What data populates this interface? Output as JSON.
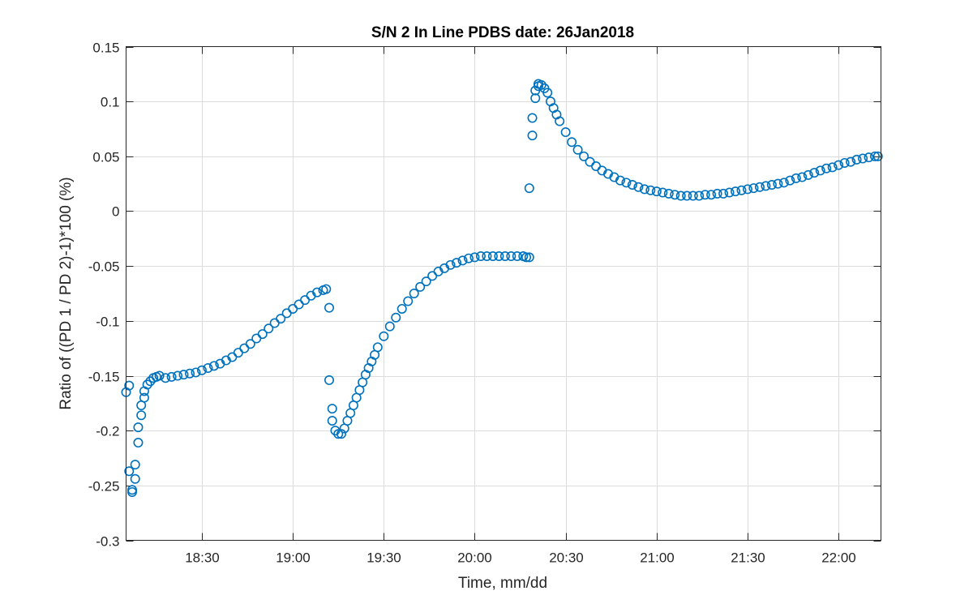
{
  "chart_data": {
    "type": "scatter",
    "title": "S/N 2 In Line PDBS date: 26Jan2018",
    "xlabel": "Time, mm/dd",
    "ylabel": "Ratio of ((PD 1 / PD 2)-1)*100 (%)",
    "xlim": [
      "18:05",
      "22:14"
    ],
    "ylim": [
      -0.3,
      0.15
    ],
    "xticks": [
      "18:30",
      "19:00",
      "19:30",
      "20:00",
      "20:30",
      "21:00",
      "21:30",
      "22:00"
    ],
    "yticks": [
      0.15,
      0.1,
      0.05,
      0,
      -0.05,
      -0.1,
      -0.15,
      -0.2,
      -0.25,
      -0.3
    ],
    "grid": true,
    "marker": "circle-open",
    "color": "#0072BD",
    "series": [
      {
        "x": [
          "18:05",
          "18:06",
          "18:06",
          "18:07",
          "18:07",
          "18:08",
          "18:08",
          "18:09",
          "18:09",
          "18:10",
          "18:10",
          "18:11",
          "18:11",
          "18:12",
          "18:13",
          "18:14",
          "18:15",
          "18:16",
          "18:18",
          "18:20",
          "18:22",
          "18:24",
          "18:26",
          "18:28",
          "18:30",
          "18:32",
          "18:34",
          "18:36",
          "18:38",
          "18:40",
          "18:42",
          "18:44",
          "18:46",
          "18:48",
          "18:50",
          "18:52",
          "18:54",
          "18:56",
          "18:58",
          "19:00",
          "19:02",
          "19:04",
          "19:06",
          "19:08",
          "19:10",
          "19:11",
          "19:12",
          "19:12",
          "19:13",
          "19:13",
          "19:14",
          "19:15",
          "19:16",
          "19:17",
          "19:18",
          "19:19",
          "19:20",
          "19:21",
          "19:22",
          "19:23",
          "19:24",
          "19:25",
          "19:26",
          "19:27",
          "19:28",
          "19:30",
          "19:32",
          "19:34",
          "19:36",
          "19:38",
          "19:40",
          "19:42",
          "19:44",
          "19:46",
          "19:48",
          "19:50",
          "19:52",
          "19:54",
          "19:56",
          "19:58",
          "20:00",
          "20:02",
          "20:04",
          "20:06",
          "20:08",
          "20:10",
          "20:12",
          "20:14",
          "20:16",
          "20:17",
          "20:18",
          "20:18",
          "20:19",
          "20:19",
          "20:20",
          "20:20",
          "20:21",
          "20:21",
          "20:22",
          "20:23",
          "20:24",
          "20:25",
          "20:26",
          "20:27",
          "20:28",
          "20:30",
          "20:32",
          "20:34",
          "20:36",
          "20:38",
          "20:40",
          "20:42",
          "20:44",
          "20:46",
          "20:48",
          "20:50",
          "20:52",
          "20:54",
          "20:56",
          "20:58",
          "21:00",
          "21:02",
          "21:04",
          "21:06",
          "21:08",
          "21:10",
          "21:12",
          "21:14",
          "21:16",
          "21:18",
          "21:20",
          "21:22",
          "21:24",
          "21:26",
          "21:28",
          "21:30",
          "21:32",
          "21:34",
          "21:36",
          "21:38",
          "21:40",
          "21:42",
          "21:44",
          "21:46",
          "21:48",
          "21:50",
          "21:52",
          "21:54",
          "21:56",
          "21:58",
          "22:00",
          "22:02",
          "22:04",
          "22:06",
          "22:08",
          "22:10",
          "22:12",
          "22:13"
        ],
        "y": [
          -0.165,
          -0.159,
          -0.237,
          -0.254,
          -0.256,
          -0.244,
          -0.231,
          -0.211,
          -0.197,
          -0.186,
          -0.177,
          -0.17,
          -0.164,
          -0.158,
          -0.155,
          -0.152,
          -0.151,
          -0.15,
          -0.152,
          -0.151,
          -0.15,
          -0.149,
          -0.148,
          -0.147,
          -0.145,
          -0.143,
          -0.141,
          -0.139,
          -0.136,
          -0.133,
          -0.129,
          -0.125,
          -0.121,
          -0.116,
          -0.112,
          -0.107,
          -0.102,
          -0.098,
          -0.093,
          -0.089,
          -0.085,
          -0.081,
          -0.077,
          -0.074,
          -0.072,
          -0.071,
          -0.088,
          -0.154,
          -0.18,
          -0.191,
          -0.2,
          -0.203,
          -0.203,
          -0.198,
          -0.191,
          -0.184,
          -0.177,
          -0.17,
          -0.163,
          -0.156,
          -0.149,
          -0.143,
          -0.137,
          -0.131,
          -0.124,
          -0.114,
          -0.105,
          -0.097,
          -0.089,
          -0.082,
          -0.075,
          -0.069,
          -0.064,
          -0.059,
          -0.055,
          -0.052,
          -0.049,
          -0.047,
          -0.045,
          -0.043,
          -0.042,
          -0.041,
          -0.041,
          -0.041,
          -0.041,
          -0.041,
          -0.041,
          -0.041,
          -0.041,
          -0.042,
          -0.042,
          0.021,
          0.069,
          0.085,
          0.103,
          0.11,
          0.114,
          0.116,
          0.115,
          0.112,
          0.108,
          0.1,
          0.094,
          0.088,
          0.082,
          0.072,
          0.063,
          0.056,
          0.05,
          0.045,
          0.041,
          0.037,
          0.034,
          0.031,
          0.028,
          0.026,
          0.024,
          0.022,
          0.02,
          0.019,
          0.018,
          0.017,
          0.016,
          0.015,
          0.014,
          0.014,
          0.014,
          0.014,
          0.015,
          0.015,
          0.016,
          0.016,
          0.017,
          0.018,
          0.019,
          0.02,
          0.021,
          0.022,
          0.023,
          0.024,
          0.025,
          0.026,
          0.028,
          0.03,
          0.031,
          0.033,
          0.035,
          0.037,
          0.039,
          0.04,
          0.042,
          0.044,
          0.045,
          0.047,
          0.048,
          0.049,
          0.05,
          0.05
        ]
      }
    ]
  }
}
